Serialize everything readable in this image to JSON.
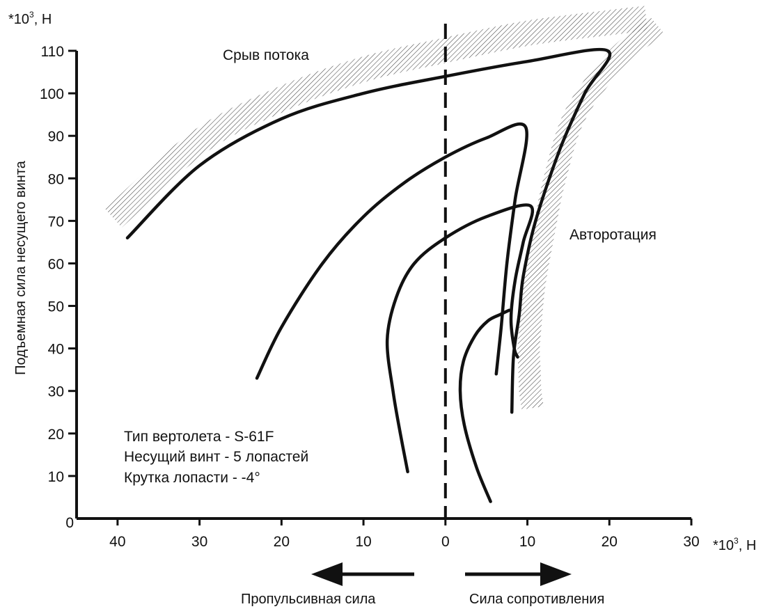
{
  "chart_data": {
    "type": "line",
    "title": "",
    "xlabel_left": "Пропульсивная сила",
    "xlabel_right": "Сила сопротивления",
    "ylabel": "Подъемная сила несущего винта",
    "x_unit": {
      "prefix": "*10",
      "sup": "3",
      "suffix": ",  H"
    },
    "y_unit": {
      "prefix": "*10",
      "sup": "3",
      "suffix": ",  H"
    },
    "xlim": [
      -45,
      30
    ],
    "ylim": [
      0,
      110
    ],
    "x_ticks": [
      -40,
      -30,
      -20,
      -10,
      0,
      10,
      20,
      30
    ],
    "x_tick_labels": [
      "40",
      "30",
      "20",
      "10",
      "0",
      "10",
      "20",
      "30"
    ],
    "y_ticks": [
      0,
      10,
      20,
      30,
      40,
      50,
      60,
      70,
      80,
      90,
      100,
      110
    ],
    "y_tick_labels": [
      "0",
      "10",
      "20",
      "30",
      "40",
      "50",
      "60",
      "70",
      "80",
      "90",
      "100",
      "110"
    ],
    "annotations": {
      "stall": "Срыв потока",
      "autorotation": "Авторотация",
      "info": [
        "Тип вертолета - S-61F",
        "Несущий винт - 5 лопастей",
        "Крутка лопасти - -4°"
      ]
    },
    "boundaries": [
      {
        "label": "Срыв потока",
        "x": [
          -40.5,
          -30,
          -20,
          -10,
          0,
          10,
          20,
          24.5
        ],
        "y": [
          69,
          87,
          97,
          104,
          108.5,
          112.5,
          115,
          116
        ]
      },
      {
        "label": "Авторотация",
        "x": [
          25,
          20,
          15,
          12.5,
          11.2,
          10,
          9.5,
          9.3,
          9.4,
          9.5,
          9.8
        ],
        "y": [
          116,
          108,
          95,
          80,
          68,
          55,
          45,
          40,
          35,
          30,
          26
        ]
      }
    ],
    "series": [
      {
        "x": [
          -38.8,
          -30,
          -20,
          -10,
          0,
          10,
          19.8,
          17,
          14,
          11,
          9.5,
          9.0,
          8.3,
          8.1
        ],
        "y": [
          66,
          83,
          94,
          100,
          104,
          107.5,
          110,
          100,
          87,
          70,
          57,
          48,
          38,
          25
        ]
      },
      {
        "x": [
          -23,
          -20,
          -15,
          -10,
          -5,
          0,
          5,
          9.8,
          8.5,
          7.5,
          6.8,
          6.2
        ],
        "y": [
          33,
          45,
          60,
          71,
          79,
          85,
          89.5,
          92,
          75,
          60,
          45,
          34
        ]
      },
      {
        "x": [
          -4.6,
          -5.5,
          -6.4,
          -7.1,
          -6.0,
          -3.8,
          0,
          5,
          10.4,
          9.5,
          8.5,
          8.0,
          8.4,
          8.8
        ],
        "y": [
          11,
          20,
          30,
          42,
          52,
          60,
          66,
          71,
          73.5,
          65,
          56,
          47,
          40,
          38
        ]
      },
      {
        "x": [
          5.5,
          3.8,
          2.3,
          1.8,
          2.2,
          3.6,
          5.2,
          6.7,
          7.8
        ],
        "y": [
          4,
          12,
          22,
          30,
          37,
          43,
          46.5,
          48,
          49
        ]
      }
    ]
  }
}
